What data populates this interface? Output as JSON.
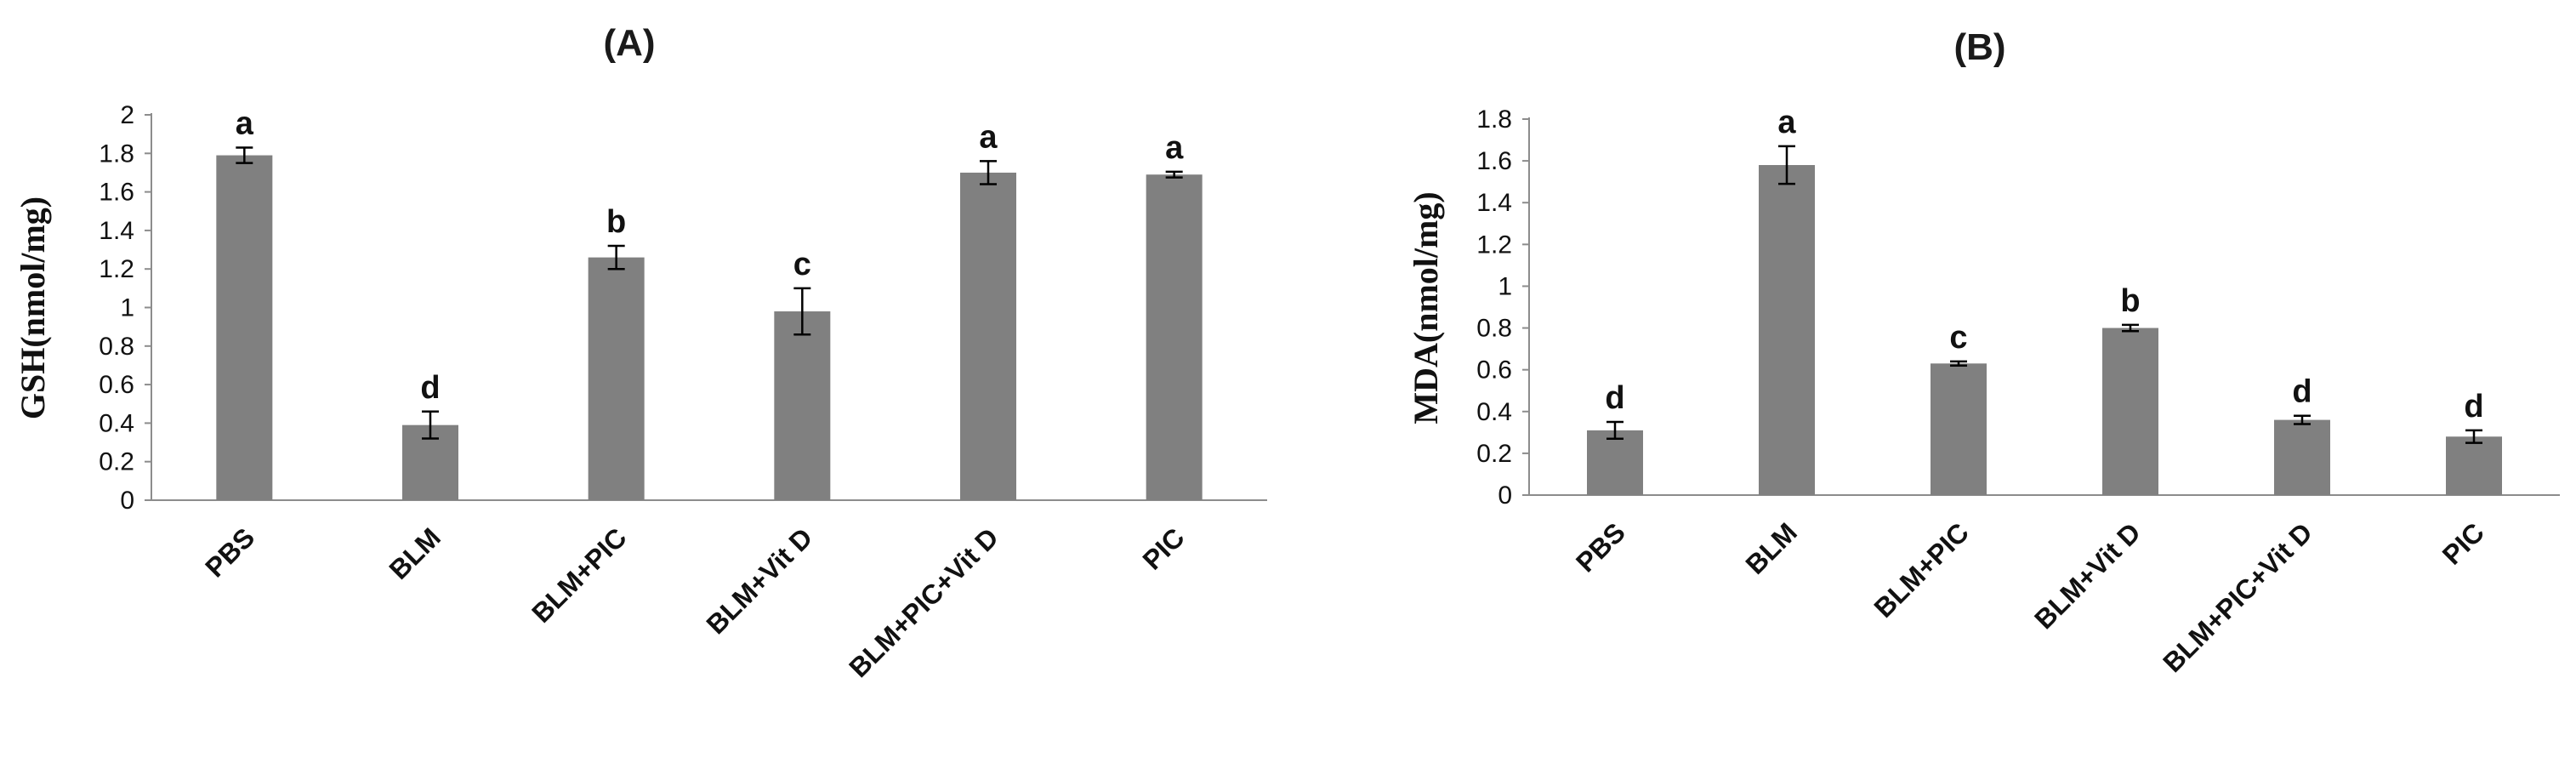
{
  "chart_data": [
    {
      "type": "bar",
      "title": "(A)",
      "ylabel": "GSH(nmol/mg)",
      "xlabel": "",
      "ylim": [
        0,
        2
      ],
      "yticks": [
        "0",
        "0.2",
        "0.4",
        "0.6",
        "0.8",
        "1",
        "1.2",
        "1.4",
        "1.6",
        "1.8",
        "2"
      ],
      "grid": false,
      "categories": [
        "PBS",
        "BLM",
        "BLM+PIC",
        "BLM+Vit D",
        "BLM+PIC+Vit D",
        "PIC"
      ],
      "values": [
        1.79,
        0.39,
        1.26,
        0.98,
        1.7,
        1.69
      ],
      "errors": [
        0.04,
        0.07,
        0.06,
        0.12,
        0.06,
        0.015
      ],
      "letters": [
        "a",
        "d",
        "b",
        "c",
        "a",
        "a"
      ],
      "bar_color": "#808080"
    },
    {
      "type": "bar",
      "title": "(B)",
      "ylabel": "MDA(nmol/mg)",
      "xlabel": "",
      "ylim": [
        0,
        1.8
      ],
      "yticks": [
        "0",
        "0.2",
        "0.4",
        "0.6",
        "0.8",
        "1",
        "1.2",
        "1.4",
        "1.6",
        "1.8"
      ],
      "grid": false,
      "categories": [
        "PBS",
        "BLM",
        "BLM+PIC",
        "BLM+Vit D",
        "BLM+PIC+Vit D",
        "PIC"
      ],
      "values": [
        0.31,
        1.58,
        0.63,
        0.8,
        0.36,
        0.28
      ],
      "errors": [
        0.04,
        0.09,
        0.01,
        0.015,
        0.02,
        0.03
      ],
      "letters": [
        "d",
        "a",
        "c",
        "b",
        "d",
        "d"
      ],
      "bar_color": "#808080"
    }
  ]
}
